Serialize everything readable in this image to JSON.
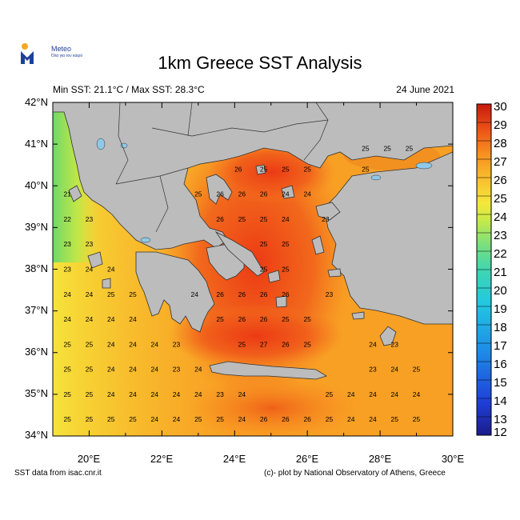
{
  "logo": {
    "name": "Meteo",
    "tagline": "Όλα για τον καιρό"
  },
  "title": "1km Greece SST Analysis",
  "subtitle_left": "Min SST: 21.1°C / Max SST: 28.3°C",
  "subtitle_right": "24 June 2021",
  "footer_left": "SST data from isac.cnr.it",
  "footer_right": "(c)- plot by National Observatory of Athens, Greece",
  "map": {
    "lon_range": [
      19,
      30
    ],
    "lat_range": [
      34,
      42
    ],
    "lat_ticks": [
      "42°N",
      "41°N",
      "40°N",
      "39°N",
      "38°N",
      "37°N",
      "36°N",
      "35°N",
      "34°N"
    ],
    "lon_ticks": [
      "20°E",
      "22°E",
      "24°E",
      "26°E",
      "28°E",
      "30°E"
    ],
    "land_color": "#bcbcbc",
    "lake_color": "#8fc8e8"
  },
  "colorbar": {
    "min": 12,
    "max": 30,
    "labels": [
      "30",
      "29",
      "28",
      "27",
      "26",
      "25",
      "24",
      "23",
      "22",
      "21",
      "20",
      "19",
      "18",
      "17",
      "16",
      "15",
      "14",
      "13",
      "12"
    ]
  },
  "sst_labels": [
    {
      "lon": 19.4,
      "lat": 39.8,
      "v": "21"
    },
    {
      "lon": 19.4,
      "lat": 39.2,
      "v": "22"
    },
    {
      "lon": 20.0,
      "lat": 39.2,
      "v": "23"
    },
    {
      "lon": 19.4,
      "lat": 38.6,
      "v": "23"
    },
    {
      "lon": 20.0,
      "lat": 38.6,
      "v": "23"
    },
    {
      "lon": 19.4,
      "lat": 38.0,
      "v": "23"
    },
    {
      "lon": 20.0,
      "lat": 38.0,
      "v": "24"
    },
    {
      "lon": 20.6,
      "lat": 38.0,
      "v": "24"
    },
    {
      "lon": 19.4,
      "lat": 37.4,
      "v": "24"
    },
    {
      "lon": 20.0,
      "lat": 37.4,
      "v": "24"
    },
    {
      "lon": 20.6,
      "lat": 37.4,
      "v": "25"
    },
    {
      "lon": 21.2,
      "lat": 37.4,
      "v": "25"
    },
    {
      "lon": 19.4,
      "lat": 36.8,
      "v": "24"
    },
    {
      "lon": 20.0,
      "lat": 36.8,
      "v": "24"
    },
    {
      "lon": 20.6,
      "lat": 36.8,
      "v": "24"
    },
    {
      "lon": 21.2,
      "lat": 36.8,
      "v": "24"
    },
    {
      "lon": 19.4,
      "lat": 36.2,
      "v": "25"
    },
    {
      "lon": 20.0,
      "lat": 36.2,
      "v": "25"
    },
    {
      "lon": 20.6,
      "lat": 36.2,
      "v": "24"
    },
    {
      "lon": 21.2,
      "lat": 36.2,
      "v": "24"
    },
    {
      "lon": 21.8,
      "lat": 36.2,
      "v": "24"
    },
    {
      "lon": 22.4,
      "lat": 36.2,
      "v": "23"
    },
    {
      "lon": 24.2,
      "lat": 36.2,
      "v": "25"
    },
    {
      "lon": 24.8,
      "lat": 36.2,
      "v": "27"
    },
    {
      "lon": 25.4,
      "lat": 36.2,
      "v": "26"
    },
    {
      "lon": 26.0,
      "lat": 36.2,
      "v": "25"
    },
    {
      "lon": 27.8,
      "lat": 36.2,
      "v": "24"
    },
    {
      "lon": 28.4,
      "lat": 36.2,
      "v": "23"
    },
    {
      "lon": 19.4,
      "lat": 35.6,
      "v": "25"
    },
    {
      "lon": 20.0,
      "lat": 35.6,
      "v": "25"
    },
    {
      "lon": 20.6,
      "lat": 35.6,
      "v": "24"
    },
    {
      "lon": 21.2,
      "lat": 35.6,
      "v": "24"
    },
    {
      "lon": 21.8,
      "lat": 35.6,
      "v": "24"
    },
    {
      "lon": 22.4,
      "lat": 35.6,
      "v": "23"
    },
    {
      "lon": 23.0,
      "lat": 35.6,
      "v": "24"
    },
    {
      "lon": 27.8,
      "lat": 35.6,
      "v": "23"
    },
    {
      "lon": 28.4,
      "lat": 35.6,
      "v": "24"
    },
    {
      "lon": 29.0,
      "lat": 35.6,
      "v": "25"
    },
    {
      "lon": 19.4,
      "lat": 35.0,
      "v": "25"
    },
    {
      "lon": 20.0,
      "lat": 35.0,
      "v": "25"
    },
    {
      "lon": 20.6,
      "lat": 35.0,
      "v": "24"
    },
    {
      "lon": 21.2,
      "lat": 35.0,
      "v": "24"
    },
    {
      "lon": 21.8,
      "lat": 35.0,
      "v": "24"
    },
    {
      "lon": 22.4,
      "lat": 35.0,
      "v": "24"
    },
    {
      "lon": 23.0,
      "lat": 35.0,
      "v": "24"
    },
    {
      "lon": 23.6,
      "lat": 35.0,
      "v": "23"
    },
    {
      "lon": 24.2,
      "lat": 35.0,
      "v": "24"
    },
    {
      "lon": 26.6,
      "lat": 35.0,
      "v": "25"
    },
    {
      "lon": 27.2,
      "lat": 35.0,
      "v": "24"
    },
    {
      "lon": 27.8,
      "lat": 35.0,
      "v": "24"
    },
    {
      "lon": 28.4,
      "lat": 35.0,
      "v": "24"
    },
    {
      "lon": 29.0,
      "lat": 35.0,
      "v": "24"
    },
    {
      "lon": 19.4,
      "lat": 34.4,
      "v": "25"
    },
    {
      "lon": 20.0,
      "lat": 34.4,
      "v": "25"
    },
    {
      "lon": 20.6,
      "lat": 34.4,
      "v": "25"
    },
    {
      "lon": 21.2,
      "lat": 34.4,
      "v": "25"
    },
    {
      "lon": 21.8,
      "lat": 34.4,
      "v": "24"
    },
    {
      "lon": 22.4,
      "lat": 34.4,
      "v": "24"
    },
    {
      "lon": 23.0,
      "lat": 34.4,
      "v": "25"
    },
    {
      "lon": 23.6,
      "lat": 34.4,
      "v": "25"
    },
    {
      "lon": 24.2,
      "lat": 34.4,
      "v": "24"
    },
    {
      "lon": 24.8,
      "lat": 34.4,
      "v": "26"
    },
    {
      "lon": 25.4,
      "lat": 34.4,
      "v": "26"
    },
    {
      "lon": 26.0,
      "lat": 34.4,
      "v": "26"
    },
    {
      "lon": 26.6,
      "lat": 34.4,
      "v": "25"
    },
    {
      "lon": 27.2,
      "lat": 34.4,
      "v": "24"
    },
    {
      "lon": 27.8,
      "lat": 34.4,
      "v": "24"
    },
    {
      "lon": 28.4,
      "lat": 34.4,
      "v": "25"
    },
    {
      "lon": 29.0,
      "lat": 34.4,
      "v": "25"
    },
    {
      "lon": 22.9,
      "lat": 37.4,
      "v": "24"
    },
    {
      "lon": 23.6,
      "lat": 37.4,
      "v": "26"
    },
    {
      "lon": 24.2,
      "lat": 37.4,
      "v": "26"
    },
    {
      "lon": 24.8,
      "lat": 37.4,
      "v": "26"
    },
    {
      "lon": 25.4,
      "lat": 37.4,
      "v": "26"
    },
    {
      "lon": 26.6,
      "lat": 37.4,
      "v": "23"
    },
    {
      "lon": 23.6,
      "lat": 36.8,
      "v": "25"
    },
    {
      "lon": 24.2,
      "lat": 36.8,
      "v": "26"
    },
    {
      "lon": 24.8,
      "lat": 36.8,
      "v": "26"
    },
    {
      "lon": 25.4,
      "lat": 36.8,
      "v": "25"
    },
    {
      "lon": 26.0,
      "lat": 36.8,
      "v": "25"
    },
    {
      "lon": 23.0,
      "lat": 39.8,
      "v": "25"
    },
    {
      "lon": 23.6,
      "lat": 39.8,
      "v": "26"
    },
    {
      "lon": 24.2,
      "lat": 39.8,
      "v": "26"
    },
    {
      "lon": 24.8,
      "lat": 39.8,
      "v": "26"
    },
    {
      "lon": 25.4,
      "lat": 39.8,
      "v": "24"
    },
    {
      "lon": 26.0,
      "lat": 39.8,
      "v": "24"
    },
    {
      "lon": 24.1,
      "lat": 40.4,
      "v": "26"
    },
    {
      "lon": 24.8,
      "lat": 40.4,
      "v": "25"
    },
    {
      "lon": 25.4,
      "lat": 40.4,
      "v": "25"
    },
    {
      "lon": 26.0,
      "lat": 40.4,
      "v": "25"
    },
    {
      "lon": 23.6,
      "lat": 39.2,
      "v": "26"
    },
    {
      "lon": 24.2,
      "lat": 39.2,
      "v": "25"
    },
    {
      "lon": 24.8,
      "lat": 39.2,
      "v": "25"
    },
    {
      "lon": 25.4,
      "lat": 39.2,
      "v": "24"
    },
    {
      "lon": 26.5,
      "lat": 39.2,
      "v": "23"
    },
    {
      "lon": 24.8,
      "lat": 38.6,
      "v": "25"
    },
    {
      "lon": 25.4,
      "lat": 38.6,
      "v": "25"
    },
    {
      "lon": 24.8,
      "lat": 38.0,
      "v": "25"
    },
    {
      "lon": 25.4,
      "lat": 38.0,
      "v": "25"
    },
    {
      "lon": 27.6,
      "lat": 40.9,
      "v": "25"
    },
    {
      "lon": 28.2,
      "lat": 40.9,
      "v": "25"
    },
    {
      "lon": 28.8,
      "lat": 40.9,
      "v": "25"
    },
    {
      "lon": 27.6,
      "lat": 40.4,
      "v": "25"
    }
  ]
}
